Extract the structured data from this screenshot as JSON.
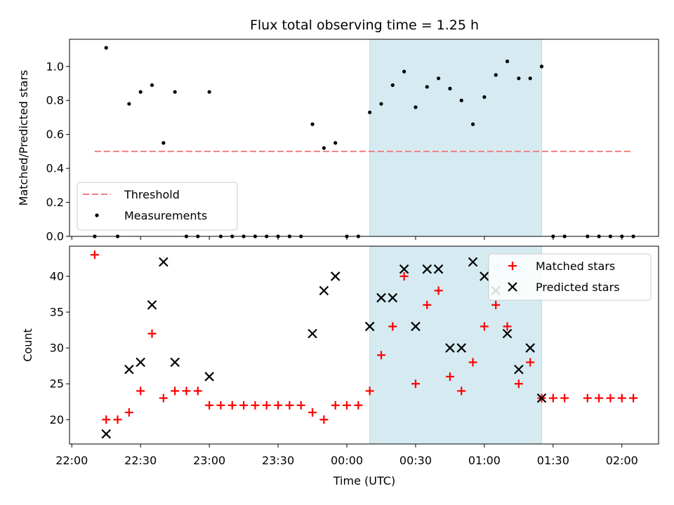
{
  "chart_data": {
    "title": "Flux total observing time = 1.25 h",
    "shared_x": {
      "label": "Time (UTC)",
      "unit": "minutes since 22:00",
      "ticks": [
        {
          "value": 0,
          "label": "22:00"
        },
        {
          "value": 30,
          "label": "22:30"
        },
        {
          "value": 60,
          "label": "23:00"
        },
        {
          "value": 90,
          "label": "23:30"
        },
        {
          "value": 120,
          "label": "00:00"
        },
        {
          "value": 150,
          "label": "00:30"
        },
        {
          "value": 180,
          "label": "01:00"
        },
        {
          "value": 210,
          "label": "01:30"
        },
        {
          "value": 240,
          "label": "02:00"
        }
      ],
      "xlim": [
        -1,
        256
      ]
    },
    "shaded_region": {
      "x0": 130,
      "x1": 205,
      "color": "#d5ebf1"
    },
    "panels": [
      {
        "id": "ratio",
        "type": "scatter",
        "ylabel": "Matched/Predicted stars",
        "ylim": [
          0,
          1.16
        ],
        "yticks": [
          {
            "value": 0.0,
            "label": "0.0"
          },
          {
            "value": 0.2,
            "label": "0.2"
          },
          {
            "value": 0.4,
            "label": "0.4"
          },
          {
            "value": 0.6,
            "label": "0.6"
          },
          {
            "value": 0.8,
            "label": "0.8"
          },
          {
            "value": 1.0,
            "label": "1.0"
          }
        ],
        "threshold": {
          "name": "Threshold",
          "value": 0.5,
          "x0": 10,
          "x1": 245,
          "color": "#f08080"
        },
        "series": [
          {
            "name": "Measurements",
            "color": "#000000",
            "marker": "dot",
            "x": [
              10,
              15,
              20,
              25,
              30,
              35,
              40,
              45,
              50,
              55,
              60,
              65,
              70,
              75,
              80,
              85,
              90,
              95,
              100,
              105,
              110,
              115,
              120,
              125,
              130,
              135,
              140,
              145,
              150,
              155,
              160,
              165,
              170,
              175,
              180,
              185,
              190,
              195,
              200,
              205,
              210,
              215,
              225,
              230,
              235,
              240,
              245
            ],
            "y": [
              0,
              1.11,
              0,
              0.78,
              0.85,
              0.89,
              0.55,
              0.85,
              0,
              0,
              0.85,
              0,
              0,
              0,
              0,
              0,
              0,
              0,
              0,
              0.66,
              0.52,
              0.55,
              0,
              0,
              0.73,
              0.78,
              0.89,
              0.97,
              0.76,
              0.88,
              0.93,
              0.87,
              0.8,
              0.66,
              0.82,
              0.95,
              1.03,
              0.93,
              0.93,
              1.0,
              0,
              0,
              0,
              0,
              0,
              0,
              0
            ]
          }
        ],
        "legend": {
          "placement": "lower-left",
          "entries": [
            "Threshold",
            "Measurements"
          ]
        }
      },
      {
        "id": "counts",
        "type": "scatter",
        "ylabel": "Count",
        "ylim": [
          16.6,
          44.2
        ],
        "yticks": [
          {
            "value": 20,
            "label": "20"
          },
          {
            "value": 25,
            "label": "25"
          },
          {
            "value": 30,
            "label": "30"
          },
          {
            "value": 35,
            "label": "35"
          },
          {
            "value": 40,
            "label": "40"
          }
        ],
        "series": [
          {
            "name": "Matched stars",
            "color": "#ff0000",
            "marker": "plus",
            "x": [
              10,
              15,
              20,
              25,
              30,
              35,
              40,
              45,
              50,
              55,
              60,
              65,
              70,
              75,
              80,
              85,
              90,
              95,
              100,
              105,
              110,
              115,
              120,
              125,
              130,
              135,
              140,
              145,
              150,
              155,
              160,
              165,
              170,
              175,
              180,
              185,
              190,
              195,
              200,
              205,
              210,
              215,
              225,
              230,
              235,
              240,
              245
            ],
            "y": [
              43,
              20,
              20,
              21,
              24,
              32,
              23,
              24,
              24,
              24,
              22,
              22,
              22,
              22,
              22,
              22,
              22,
              22,
              22,
              21,
              20,
              22,
              22,
              22,
              24,
              29,
              33,
              40,
              25,
              36,
              38,
              26,
              24,
              28,
              33,
              36,
              33,
              25,
              28,
              23,
              23,
              23,
              23,
              23,
              23,
              23,
              23
            ]
          },
          {
            "name": "Predicted stars",
            "color": "#000000",
            "marker": "x",
            "x": [
              15,
              25,
              30,
              35,
              40,
              45,
              60,
              105,
              110,
              115,
              130,
              135,
              140,
              145,
              150,
              155,
              160,
              165,
              170,
              175,
              180,
              185,
              190,
              195,
              200,
              205
            ],
            "y": [
              18,
              27,
              28,
              36,
              42,
              28,
              26,
              32,
              38,
              40,
              33,
              37,
              37,
              41,
              33,
              41,
              41,
              30,
              30,
              42,
              40,
              38,
              32,
              27,
              30,
              23
            ]
          }
        ],
        "legend": {
          "placement": "upper-right",
          "entries": [
            "Matched stars",
            "Predicted stars"
          ]
        }
      }
    ]
  }
}
